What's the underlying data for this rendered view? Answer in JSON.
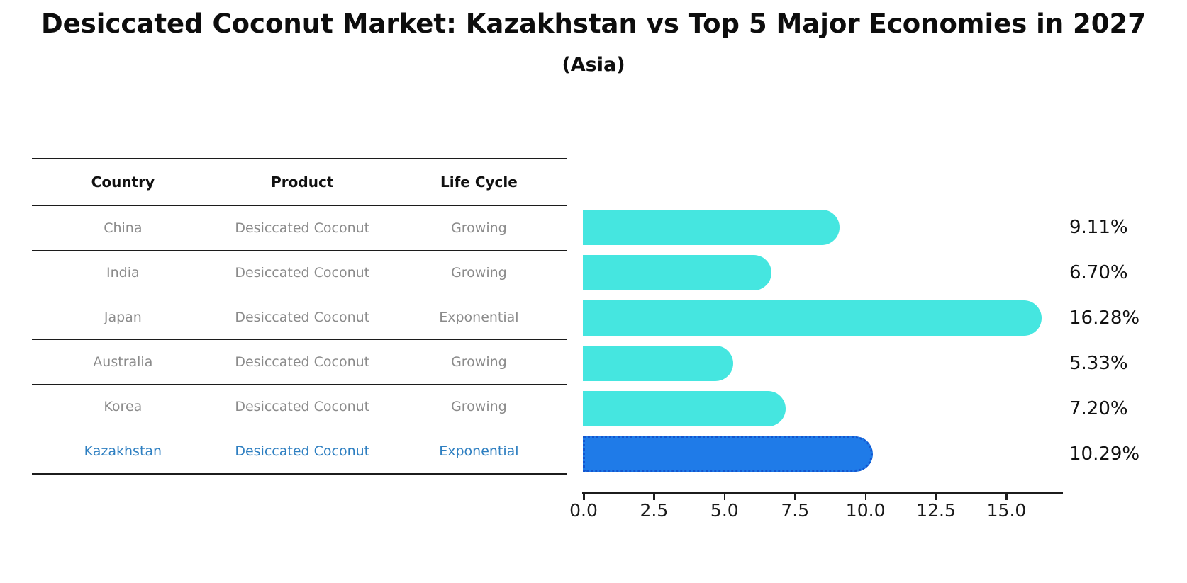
{
  "header": {
    "title": "Desiccated Coconut Market: Kazakhstan vs Top 5 Major Economies in 2027",
    "subtitle": "(Asia)"
  },
  "table": {
    "headers": [
      "Country",
      "Product",
      "Life Cycle"
    ],
    "rows": [
      {
        "country": "China",
        "product": "Desiccated Coconut",
        "life_cycle": "Growing",
        "highlight": false
      },
      {
        "country": "India",
        "product": "Desiccated Coconut",
        "life_cycle": "Growing",
        "highlight": false
      },
      {
        "country": "Japan",
        "product": "Desiccated Coconut",
        "life_cycle": "Exponential",
        "highlight": false
      },
      {
        "country": "Australia",
        "product": "Desiccated Coconut",
        "life_cycle": "Growing",
        "highlight": false
      },
      {
        "country": "Korea",
        "product": "Desiccated Coconut",
        "life_cycle": "Growing",
        "highlight": false
      },
      {
        "country": "Kazakhstan",
        "product": "Desiccated Coconut",
        "life_cycle": "Exponential",
        "highlight": true
      }
    ]
  },
  "chart_data": {
    "type": "bar",
    "orientation": "horizontal",
    "title": "Desiccated Coconut Market: Kazakhstan vs Top 5 Major Economies in 2027",
    "subtitle": "(Asia)",
    "categories": [
      "China",
      "India",
      "Japan",
      "Australia",
      "Korea",
      "Kazakhstan"
    ],
    "values": [
      9.11,
      6.7,
      16.28,
      5.33,
      7.2,
      10.29
    ],
    "value_labels": [
      "9.11%",
      "6.70%",
      "16.28%",
      "5.33%",
      "7.20%",
      "10.29%"
    ],
    "highlight_index": 5,
    "x_ticks": [
      0.0,
      2.5,
      5.0,
      7.5,
      10.0,
      12.5,
      15.0
    ],
    "x_tick_labels": [
      "0.0",
      "2.5",
      "5.0",
      "7.5",
      "10.0",
      "12.5",
      "15.0"
    ],
    "xlim": [
      0,
      17
    ],
    "grid": false,
    "legend": false,
    "bar_color": "#45E6E0",
    "highlight_color": "#1F7BE8",
    "highlight_border_color": "#1356CF",
    "highlight_text_color": "#2E7FC1",
    "text_color": "#8B8B8B"
  }
}
